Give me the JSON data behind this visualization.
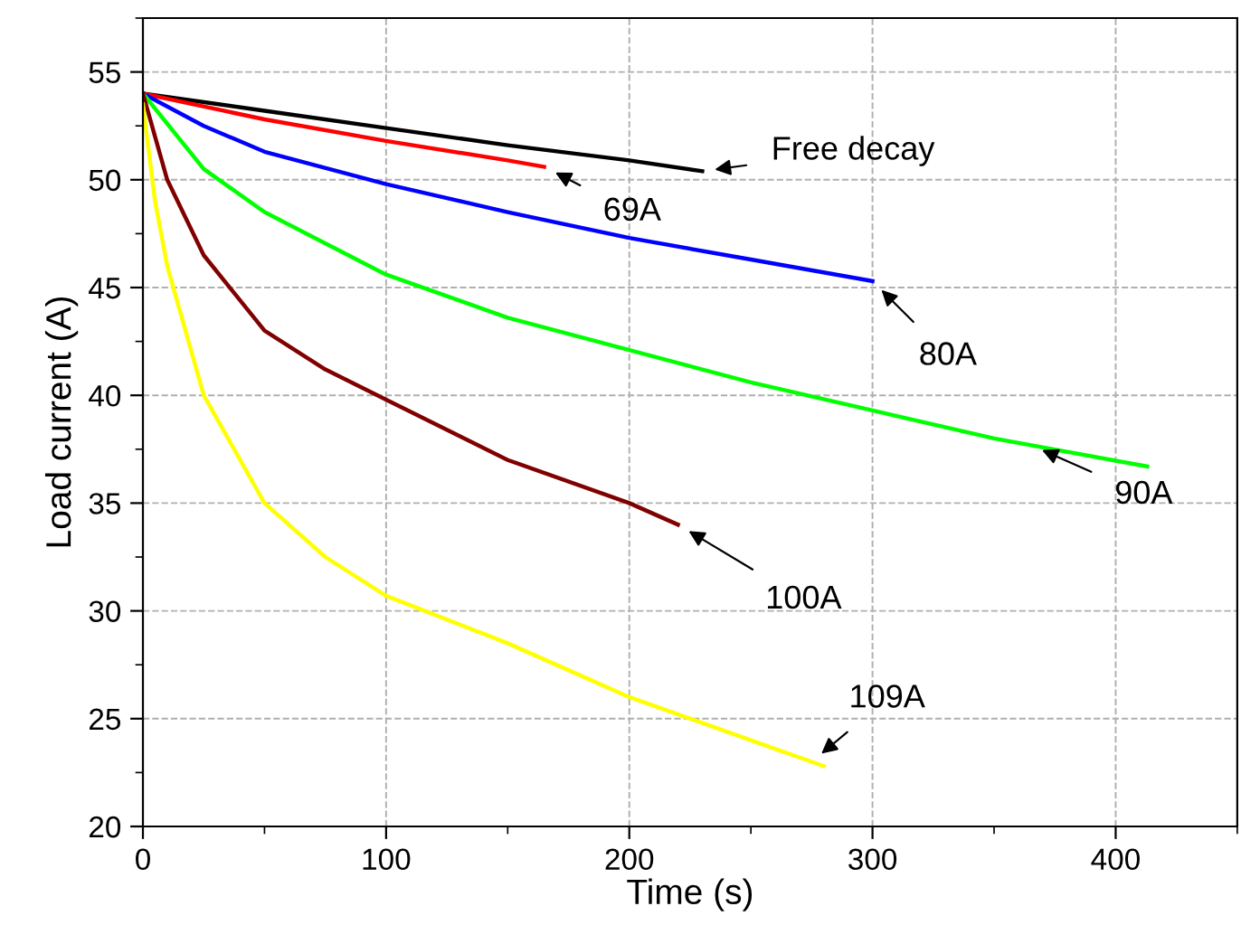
{
  "chart_data": {
    "type": "line",
    "xlabel": "Time (s)",
    "ylabel": "Load current (A)",
    "xlim": [
      0,
      450
    ],
    "ylim": [
      20,
      57.5
    ],
    "xticks": [
      0,
      100,
      200,
      300,
      400
    ],
    "yticks": [
      20,
      25,
      30,
      35,
      40,
      45,
      50,
      55
    ],
    "grid": true,
    "line_style": "solid",
    "marker": "none",
    "series": [
      {
        "color": "#000000",
        "x": [
          0,
          50,
          100,
          150,
          200,
          230
        ],
        "values": [
          54.0,
          53.2,
          52.4,
          51.6,
          50.9,
          50.4
        ]
      },
      {
        "color": "#ff0000",
        "x": [
          0,
          50,
          100,
          150,
          165
        ],
        "values": [
          54.0,
          52.8,
          51.8,
          50.9,
          50.6
        ]
      },
      {
        "color": "#0000ff",
        "x": [
          0,
          25,
          50,
          100,
          150,
          200,
          250,
          300
        ],
        "values": [
          54.0,
          52.5,
          51.3,
          49.8,
          48.5,
          47.3,
          46.3,
          45.3
        ]
      },
      {
        "color": "#00ff00",
        "x": [
          0,
          25,
          50,
          100,
          150,
          200,
          250,
          300,
          350,
          413
        ],
        "values": [
          54.0,
          50.5,
          48.5,
          45.6,
          43.6,
          42.1,
          40.6,
          39.3,
          38.0,
          36.7
        ]
      },
      {
        "color": "#800000",
        "x": [
          0,
          10,
          25,
          50,
          75,
          100,
          150,
          200,
          220
        ],
        "values": [
          54.0,
          50.0,
          46.5,
          43.0,
          41.2,
          39.8,
          37.0,
          35.0,
          34.0
        ]
      },
      {
        "color": "#ffff00",
        "x": [
          0,
          5,
          10,
          25,
          50,
          75,
          100,
          150,
          200,
          250,
          280
        ],
        "values": [
          53.5,
          49.0,
          46.0,
          40.0,
          35.0,
          32.5,
          30.7,
          28.5,
          26.0,
          24.0,
          22.8
        ]
      }
    ],
    "annotations": [
      {
        "text": "Free decay",
        "x": 230,
        "y": 50.4
      },
      {
        "text": "69A",
        "x": 165,
        "y": 50.6
      },
      {
        "text": "80A",
        "x": 300,
        "y": 45.3
      },
      {
        "text": "90A",
        "x": 365,
        "y": 37.7
      },
      {
        "text": "100A",
        "x": 220,
        "y": 34.0
      },
      {
        "text": "109A",
        "x": 275,
        "y": 23.0
      }
    ]
  }
}
